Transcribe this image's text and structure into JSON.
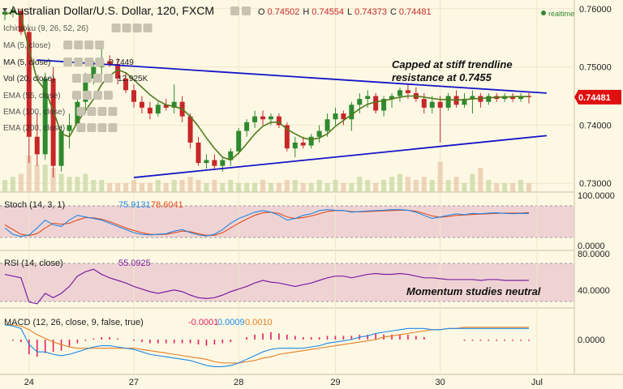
{
  "header": {
    "title": "Australian Dollar/U.S. Dollar, 120, FXCM",
    "ohlc": [
      {
        "k": "O",
        "v": "0.74502"
      },
      {
        "k": "H",
        "v": "0.74554"
      },
      {
        "k": "L",
        "v": "0.74373"
      },
      {
        "k": "C",
        "v": "0.74481"
      }
    ],
    "realtime": "realtime",
    "colors": {
      "up": "#2f8a30",
      "down": "#c62828",
      "realtime_dot": "#2f8a30"
    }
  },
  "indicators": [
    {
      "label": "Ichimoku (9, 26, 52, 26)",
      "value": "",
      "faded": true
    },
    {
      "label": "MA (5, close)",
      "value": "",
      "faded": true
    },
    {
      "label": "MA (5, close)",
      "value": "0.7449",
      "value_color": "#4a7a1e",
      "faded": false
    },
    {
      "label": "Vol (20, close)",
      "value": "12.925K",
      "value_color": "#444444",
      "faded": false
    },
    {
      "label": "EMA (55, close)",
      "value": "",
      "faded": true
    },
    {
      "label": "EMA (100, close)",
      "value": "",
      "faded": true
    },
    {
      "label": "EMA (200, close)",
      "value": "",
      "faded": true
    }
  ],
  "annotations": {
    "trendline_note": [
      "Capped at stiff trendline",
      "resistance at 0.7455"
    ],
    "momentum_note": "Momentum studies neutral"
  },
  "panels": {
    "stoch": {
      "label": "Stoch (14, 3, 1)",
      "k": "75.9131",
      "d": "78.6041",
      "k_color": "#1e88e5",
      "d_color": "#e64a19",
      "ticks": [
        "100.0000",
        "0.0000"
      ]
    },
    "rsi": {
      "label": "RSI (14, close)",
      "value": "55.0925",
      "color": "#7b1fa2",
      "ticks": [
        "80.0000",
        "40.0000"
      ]
    },
    "macd": {
      "label": "MACD (12, 26, close, 9, false, true)",
      "hist": "-0.0001",
      "macd": "0.0009",
      "signal": "0.0010",
      "hist_color": "#e91e63",
      "macd_color": "#1e88e5",
      "signal_color": "#e67e22",
      "ticks": [
        "0.0000"
      ]
    }
  },
  "current_price": {
    "label": "0.74481",
    "value": 0.74481,
    "color": "#e01010"
  },
  "chart_data": {
    "type": "candlestick",
    "title": "Australian Dollar/U.S. Dollar, 120, FXCM",
    "ylim": [
      0.7285,
      0.7615
    ],
    "y_ticks": [
      0.76,
      0.75,
      0.74,
      0.73
    ],
    "y_tick_labels": [
      "0.76000",
      "0.75000",
      "0.74000",
      "0.73000"
    ],
    "x_tick_labels": [
      "24",
      "27",
      "28",
      "29",
      "30",
      "Jul"
    ],
    "x_tick_index": [
      3,
      16,
      29,
      41,
      54,
      66
    ],
    "candles": [
      [
        0.759,
        0.76,
        0.758,
        0.7595
      ],
      [
        0.7595,
        0.7605,
        0.7585,
        0.7598
      ],
      [
        0.7596,
        0.76,
        0.7555,
        0.756
      ],
      [
        0.756,
        0.7565,
        0.7335,
        0.738
      ],
      [
        0.738,
        0.742,
        0.733,
        0.735
      ],
      [
        0.735,
        0.749,
        0.734,
        0.748
      ],
      [
        0.748,
        0.75,
        0.731,
        0.733
      ],
      [
        0.733,
        0.74,
        0.732,
        0.739
      ],
      [
        0.739,
        0.742,
        0.736,
        0.74
      ],
      [
        0.74,
        0.7445,
        0.739,
        0.744
      ],
      [
        0.744,
        0.749,
        0.742,
        0.748
      ],
      [
        0.748,
        0.751,
        0.747,
        0.75
      ],
      [
        0.75,
        0.753,
        0.748,
        0.751
      ],
      [
        0.751,
        0.752,
        0.75,
        0.7505
      ],
      [
        0.7505,
        0.7515,
        0.747,
        0.748
      ],
      [
        0.748,
        0.749,
        0.7455,
        0.746
      ],
      [
        0.746,
        0.747,
        0.743,
        0.744
      ],
      [
        0.744,
        0.745,
        0.742,
        0.743
      ],
      [
        0.743,
        0.744,
        0.741,
        0.742
      ],
      [
        0.742,
        0.744,
        0.7415,
        0.7435
      ],
      [
        0.7435,
        0.7445,
        0.7425,
        0.743
      ],
      [
        0.743,
        0.747,
        0.742,
        0.744
      ],
      [
        0.744,
        0.745,
        0.7405,
        0.7415
      ],
      [
        0.7415,
        0.742,
        0.736,
        0.737
      ],
      [
        0.737,
        0.738,
        0.733,
        0.7335
      ],
      [
        0.7335,
        0.735,
        0.7325,
        0.734
      ],
      [
        0.734,
        0.735,
        0.7325,
        0.733
      ],
      [
        0.733,
        0.7345,
        0.732,
        0.734
      ],
      [
        0.734,
        0.736,
        0.733,
        0.7355
      ],
      [
        0.7355,
        0.7395,
        0.735,
        0.739
      ],
      [
        0.739,
        0.741,
        0.738,
        0.7405
      ],
      [
        0.7405,
        0.7425,
        0.7395,
        0.7415
      ],
      [
        0.7415,
        0.7425,
        0.74,
        0.741
      ],
      [
        0.741,
        0.742,
        0.74,
        0.7415
      ],
      [
        0.7415,
        0.742,
        0.7395,
        0.74
      ],
      [
        0.74,
        0.7405,
        0.7355,
        0.736
      ],
      [
        0.736,
        0.738,
        0.7345,
        0.737
      ],
      [
        0.737,
        0.738,
        0.736,
        0.7365
      ],
      [
        0.7365,
        0.7385,
        0.736,
        0.738
      ],
      [
        0.738,
        0.74,
        0.737,
        0.739
      ],
      [
        0.739,
        0.742,
        0.738,
        0.741
      ],
      [
        0.741,
        0.743,
        0.74,
        0.742
      ],
      [
        0.742,
        0.7425,
        0.74,
        0.741
      ],
      [
        0.741,
        0.744,
        0.739,
        0.7435
      ],
      [
        0.7435,
        0.7455,
        0.742,
        0.7445
      ],
      [
        0.7445,
        0.746,
        0.743,
        0.745
      ],
      [
        0.745,
        0.7455,
        0.742,
        0.7425
      ],
      [
        0.7425,
        0.745,
        0.7415,
        0.7445
      ],
      [
        0.7445,
        0.7455,
        0.743,
        0.745
      ],
      [
        0.745,
        0.7465,
        0.744,
        0.746
      ],
      [
        0.746,
        0.747,
        0.7445,
        0.7455
      ],
      [
        0.7455,
        0.7465,
        0.744,
        0.7445
      ],
      [
        0.7445,
        0.7455,
        0.742,
        0.743
      ],
      [
        0.743,
        0.745,
        0.742,
        0.744
      ],
      [
        0.744,
        0.745,
        0.737,
        0.743
      ],
      [
        0.743,
        0.7455,
        0.7425,
        0.745
      ],
      [
        0.745,
        0.746,
        0.743,
        0.7435
      ],
      [
        0.7435,
        0.7455,
        0.743,
        0.7445
      ],
      [
        0.7445,
        0.746,
        0.742,
        0.745
      ],
      [
        0.745,
        0.7455,
        0.743,
        0.744
      ],
      [
        0.744,
        0.7455,
        0.7435,
        0.745
      ],
      [
        0.745,
        0.7455,
        0.744,
        0.7445
      ],
      [
        0.7445,
        0.7455,
        0.744,
        0.745
      ],
      [
        0.745,
        0.7455,
        0.744,
        0.7445
      ],
      [
        0.7445,
        0.7455,
        0.744,
        0.745
      ],
      [
        0.74502,
        0.74554,
        0.74373,
        0.74481
      ]
    ],
    "ma5": [
      0.759,
      0.7595,
      0.7588,
      0.753,
      0.7478,
      0.746,
      0.7425,
      0.7385,
      0.738,
      0.7405,
      0.7425,
      0.7445,
      0.747,
      0.7485,
      0.7495,
      0.749,
      0.7478,
      0.7465,
      0.7452,
      0.7442,
      0.7435,
      0.7432,
      0.7428,
      0.7415,
      0.7398,
      0.7378,
      0.736,
      0.7345,
      0.734,
      0.7352,
      0.7368,
      0.7385,
      0.7398,
      0.7405,
      0.7405,
      0.7393,
      0.7385,
      0.7378,
      0.7375,
      0.7378,
      0.7385,
      0.7398,
      0.7408,
      0.7418,
      0.7428,
      0.7436,
      0.744,
      0.7442,
      0.7445,
      0.7448,
      0.745,
      0.745,
      0.7448,
      0.7446,
      0.7444,
      0.7444,
      0.7443,
      0.7444,
      0.7445,
      0.7446,
      0.7447,
      0.7448,
      0.7448,
      0.7449,
      0.7449,
      0.7449
    ],
    "volume": [
      4,
      5,
      6,
      12,
      9,
      9,
      8,
      6,
      5,
      5,
      6,
      4,
      4,
      3,
      3,
      3,
      4,
      3,
      3,
      4,
      3,
      4,
      4,
      5,
      4,
      3,
      4,
      3,
      4,
      3,
      3,
      3,
      4,
      3,
      3,
      4,
      4,
      3,
      3,
      4,
      3,
      4,
      3,
      3,
      5,
      4,
      3,
      4,
      5,
      6,
      5,
      4,
      5,
      4,
      10,
      4,
      5,
      3,
      6,
      8,
      4,
      3,
      3,
      3,
      4,
      3
    ],
    "resistance_line": {
      "label": "resistance at 0.7455",
      "from": [
        4,
        0.7512
      ],
      "to": [
        66,
        0.7455
      ]
    },
    "support_line": {
      "from": [
        16,
        0.731
      ],
      "to": [
        66,
        0.7382
      ]
    },
    "stoch_k": [
      30,
      10,
      3,
      8,
      30,
      55,
      40,
      35,
      55,
      70,
      65,
      60,
      55,
      45,
      35,
      25,
      15,
      10,
      8,
      10,
      12,
      20,
      25,
      15,
      8,
      5,
      10,
      25,
      45,
      60,
      70,
      80,
      85,
      80,
      70,
      55,
      60,
      70,
      75,
      85,
      88,
      86,
      85,
      80,
      82,
      84,
      85,
      86,
      88,
      88,
      86,
      80,
      70,
      60,
      65,
      70,
      75,
      72,
      76,
      75,
      77,
      78,
      76,
      75,
      76,
      75.9
    ],
    "stoch_d": [
      40,
      25,
      10,
      6,
      12,
      30,
      45,
      42,
      45,
      55,
      63,
      62,
      58,
      50,
      40,
      30,
      22,
      15,
      10,
      9,
      10,
      15,
      20,
      18,
      12,
      7,
      7,
      15,
      30,
      45,
      58,
      70,
      78,
      80,
      76,
      65,
      60,
      63,
      68,
      75,
      82,
      85,
      85,
      82,
      81,
      82,
      83,
      84,
      85,
      86,
      86,
      83,
      76,
      68,
      64,
      66,
      70,
      71,
      73,
      74,
      75,
      76,
      77,
      77,
      77,
      78.6
    ],
    "rsi": [
      62,
      60,
      58,
      30,
      28,
      40,
      35,
      40,
      48,
      60,
      65,
      68,
      62,
      58,
      55,
      52,
      48,
      45,
      42,
      40,
      42,
      44,
      42,
      38,
      35,
      34,
      35,
      38,
      42,
      45,
      48,
      52,
      55,
      53,
      52,
      50,
      48,
      50,
      52,
      55,
      58,
      60,
      60,
      58,
      60,
      62,
      63,
      62,
      62,
      63,
      62,
      60,
      58,
      58,
      57,
      56,
      56,
      56,
      56,
      55,
      56,
      56,
      55,
      55,
      55,
      55.1
    ],
    "macd_line": [
      0.0012,
      0.0011,
      0.0009,
      -0.0004,
      -0.001,
      -0.001,
      -0.0012,
      -0.0013,
      -0.0012,
      -0.001,
      -0.0008,
      -0.0006,
      -0.0005,
      -0.0005,
      -0.0006,
      -0.0007,
      -0.0008,
      -0.001,
      -0.0012,
      -0.0013,
      -0.0014,
      -0.0015,
      -0.0016,
      -0.0017,
      -0.0019,
      -0.0021,
      -0.0022,
      -0.0022,
      -0.0021,
      -0.0019,
      -0.0016,
      -0.0013,
      -0.001,
      -0.0008,
      -0.0007,
      -0.0007,
      -0.0007,
      -0.0007,
      -0.0006,
      -0.0005,
      -0.0003,
      -0.0002,
      -0.0001,
      0.0,
      0.0002,
      0.0003,
      0.0005,
      0.0006,
      0.0007,
      0.0008,
      0.0009,
      0.0009,
      0.0009,
      0.0008,
      0.0008,
      0.0009,
      0.0009,
      0.0009,
      0.0009,
      0.0009,
      0.0009,
      0.0009,
      0.0009,
      0.0009,
      0.0009,
      0.0009
    ],
    "signal_line": [
      0.0012,
      0.0012,
      0.0011,
      0.0008,
      0.0004,
      0.0001,
      -0.0002,
      -0.0004,
      -0.0006,
      -0.0007,
      -0.0007,
      -0.0007,
      -0.0007,
      -0.0007,
      -0.0007,
      -0.0007,
      -0.0007,
      -0.0008,
      -0.0009,
      -0.001,
      -0.0011,
      -0.0012,
      -0.0013,
      -0.0014,
      -0.0015,
      -0.0016,
      -0.0018,
      -0.0019,
      -0.0019,
      -0.0019,
      -0.0018,
      -0.0017,
      -0.0015,
      -0.0014,
      -0.0012,
      -0.0011,
      -0.001,
      -0.0009,
      -0.0008,
      -0.0007,
      -0.0006,
      -0.0005,
      -0.0004,
      -0.0003,
      -0.0002,
      -0.0001,
      0.0,
      0.0002,
      0.0003,
      0.0004,
      0.0005,
      0.0006,
      0.0007,
      0.0008,
      0.0008,
      0.0009,
      0.0009,
      0.001,
      0.001,
      0.001,
      0.001,
      0.001,
      0.001,
      0.001,
      0.001,
      0.001
    ],
    "macd_hist": [
      0.0,
      -0.0001,
      -0.0002,
      -0.0012,
      -0.0014,
      -0.0011,
      -0.001,
      -0.0009,
      -0.0006,
      -0.0003,
      -0.0001,
      0.0001,
      0.0002,
      0.0002,
      0.0001,
      0.0,
      -0.0001,
      -0.0002,
      -0.0003,
      -0.0003,
      -0.0003,
      -0.0003,
      -0.0003,
      -0.0003,
      -0.0004,
      -0.0005,
      -0.0004,
      -0.0003,
      -0.0002,
      0.0,
      0.0002,
      0.0004,
      0.0005,
      0.0006,
      0.0005,
      0.0004,
      0.0003,
      0.0002,
      0.0002,
      0.0002,
      0.0003,
      0.0003,
      0.0003,
      0.0003,
      0.0004,
      0.0004,
      0.0005,
      0.0004,
      0.0004,
      0.0004,
      0.0004,
      0.0003,
      0.0002,
      0.0,
      0.0,
      0.0,
      0.0,
      -0.0001,
      -0.0001,
      -0.0001,
      -0.0001,
      -0.0001,
      -0.0001,
      -0.0001,
      -0.0001,
      -0.0001
    ]
  }
}
